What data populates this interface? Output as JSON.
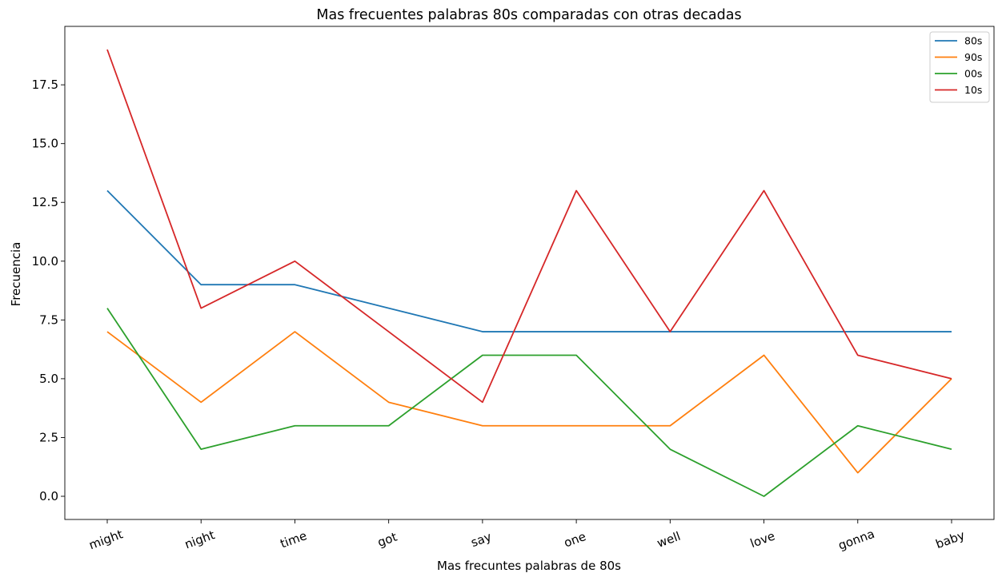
{
  "chart_data": {
    "type": "line",
    "title": "Mas frecuentes palabras 80s comparadas con otras decadas",
    "xlabel": "Mas frecuntes palabras de 80s",
    "ylabel": "Frecuencia",
    "categories": [
      "might",
      "night",
      "time",
      "got",
      "say",
      "one",
      "well",
      "love",
      "gonna",
      "baby"
    ],
    "ylim": [
      -1,
      20
    ],
    "yticks": [
      0.0,
      2.5,
      5.0,
      7.5,
      10.0,
      12.5,
      15.0,
      17.5
    ],
    "ytick_labels": [
      "0.0",
      "2.5",
      "5.0",
      "7.5",
      "10.0",
      "12.5",
      "15.0",
      "17.5"
    ],
    "grid": false,
    "legend_position": "top-right",
    "x_tick_rotation": "slanted",
    "series": [
      {
        "name": "80s",
        "color": "#1f77b4",
        "values": [
          13,
          9,
          9,
          8,
          7,
          7,
          7,
          7,
          7,
          7
        ]
      },
      {
        "name": "90s",
        "color": "#ff7f0e",
        "values": [
          7,
          4,
          7,
          4,
          3,
          3,
          3,
          6,
          1,
          5
        ]
      },
      {
        "name": "00s",
        "color": "#2ca02c",
        "values": [
          8,
          2,
          3,
          3,
          6,
          6,
          2,
          0,
          3,
          2
        ]
      },
      {
        "name": "10s",
        "color": "#d62728",
        "values": [
          19,
          8,
          10,
          7,
          4,
          13,
          7,
          13,
          6,
          5
        ]
      }
    ]
  }
}
